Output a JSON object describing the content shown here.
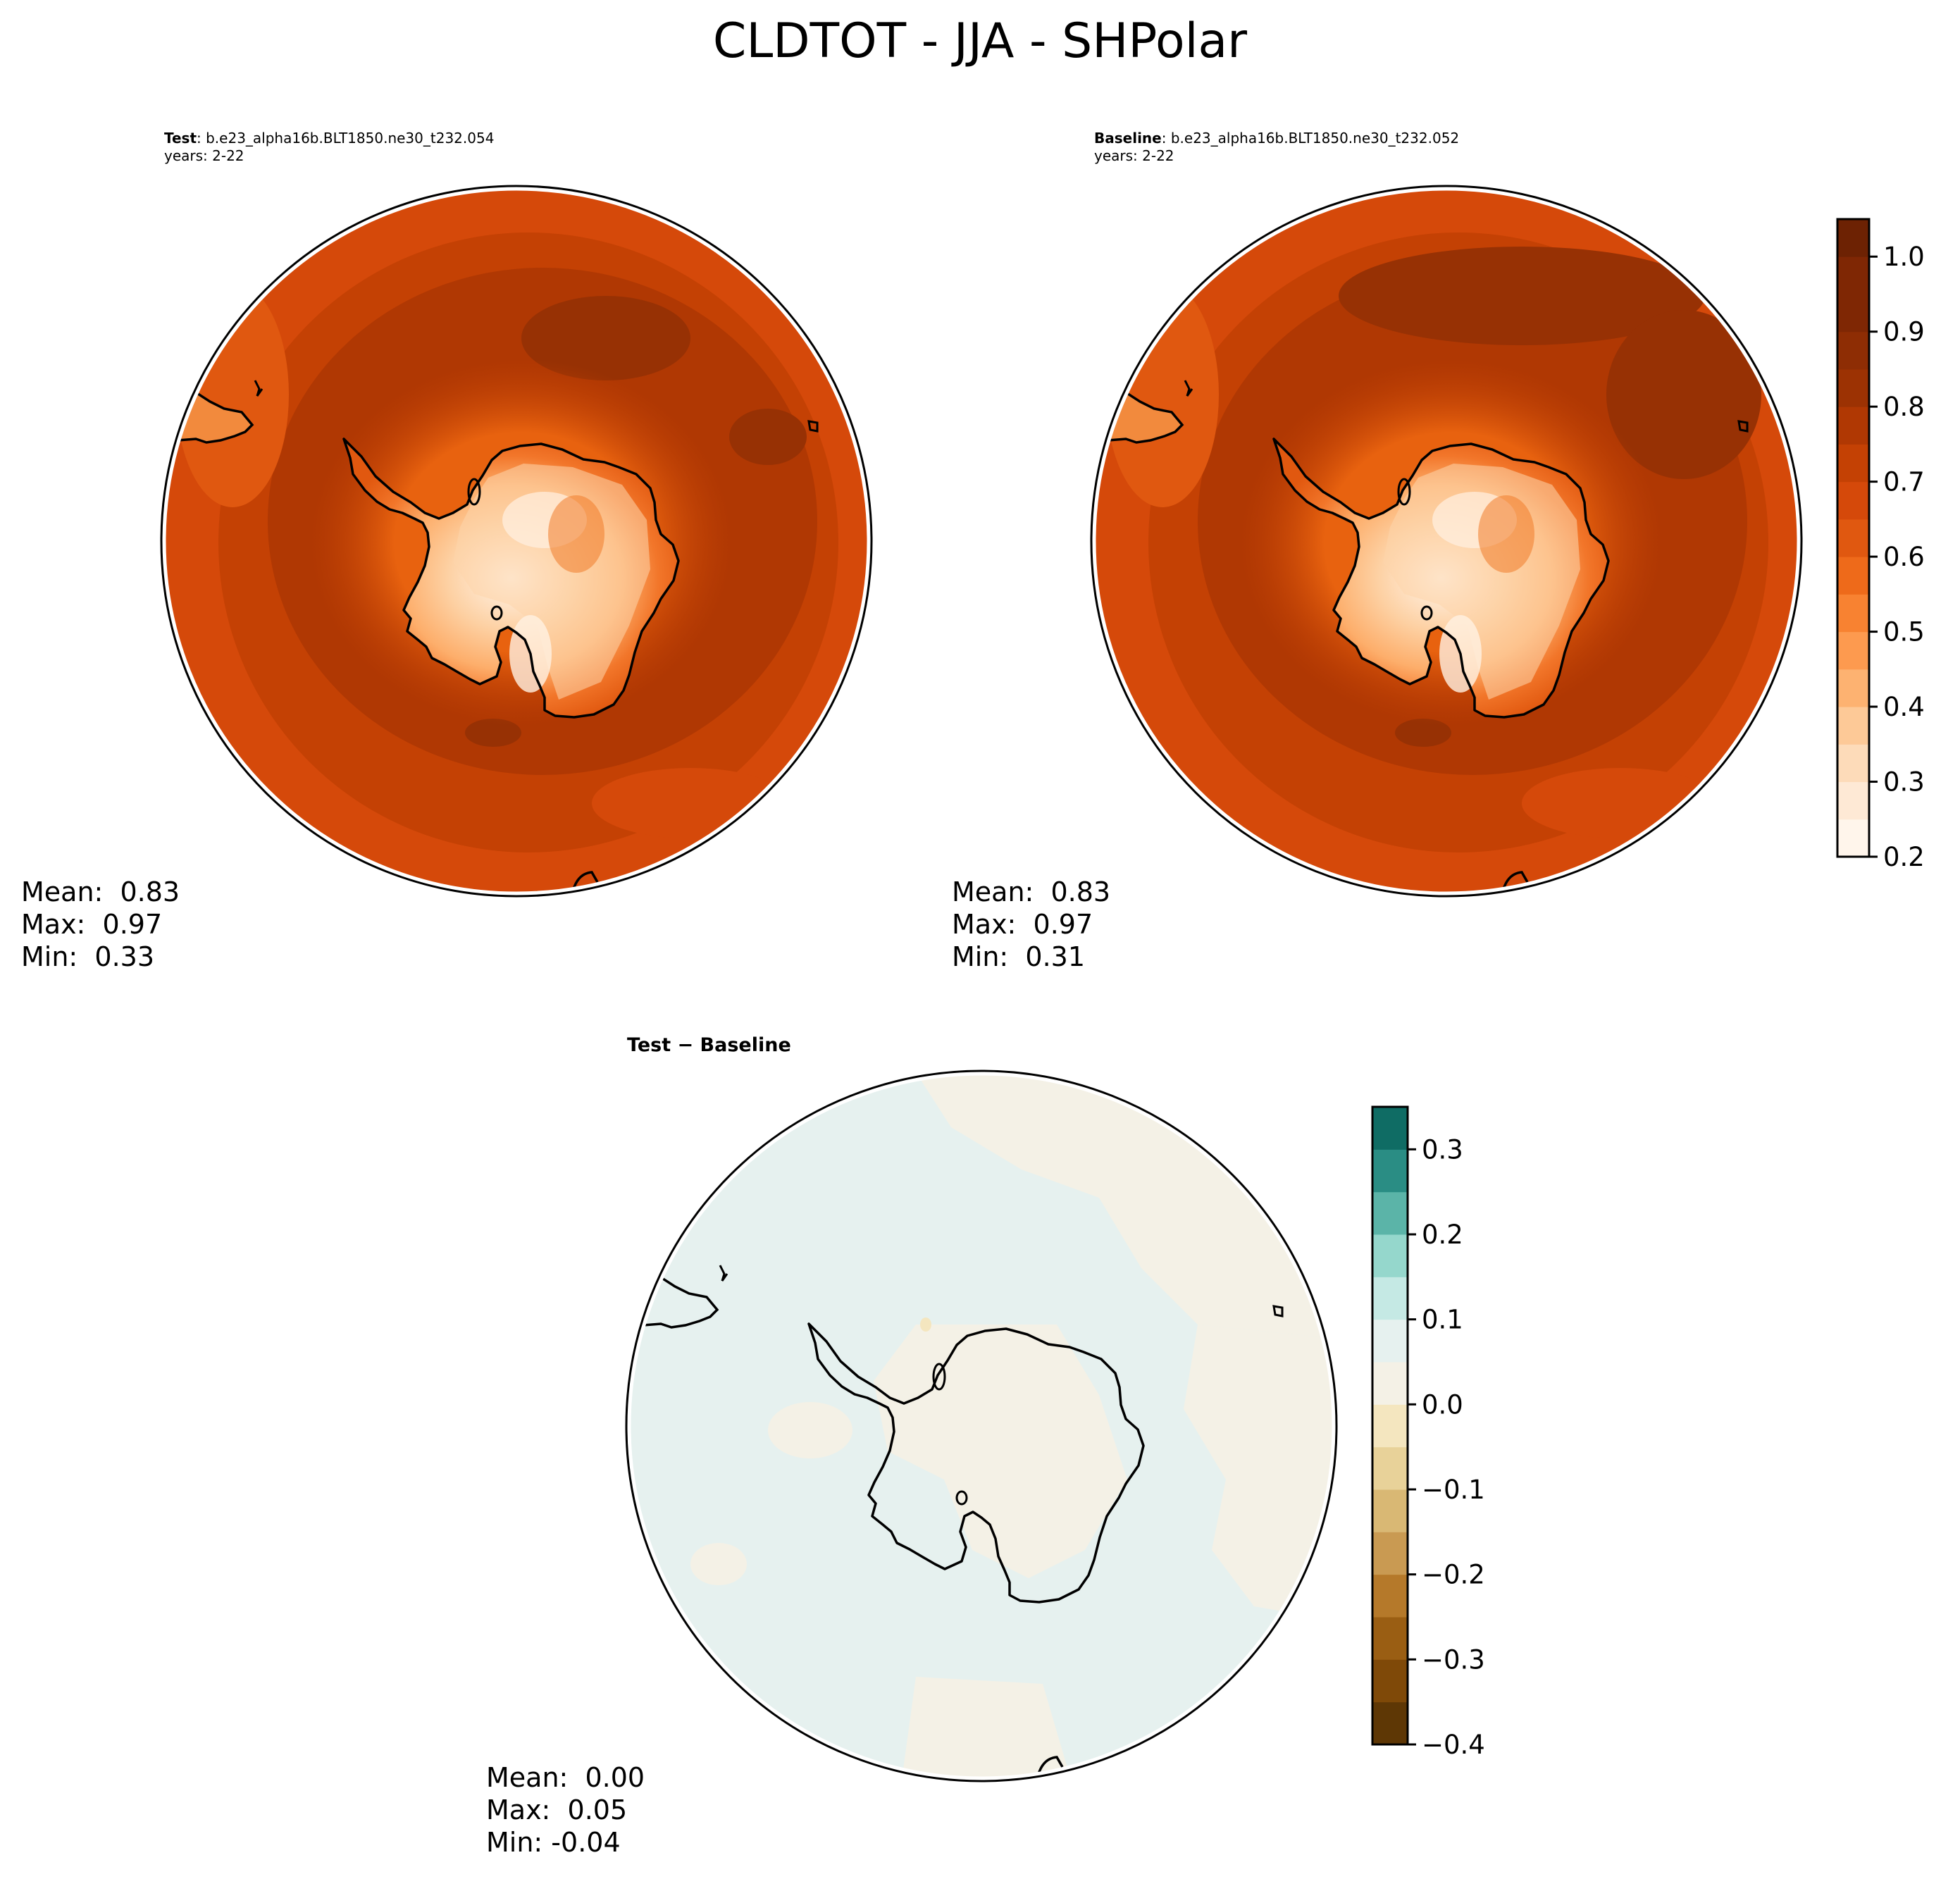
{
  "figure_title": "CLDTOT - JJA - SHPolar",
  "panels": {
    "test": {
      "label": "Test",
      "case": ": b.e23_alpha16b.BLT1850.ne30_t232.054",
      "years": "years: 2-22",
      "stats": {
        "mean": "Mean:  0.83",
        "max": "Max:  0.97",
        "min": "Min:  0.33"
      }
    },
    "baseline": {
      "label": "Baseline",
      "case": ": b.e23_alpha16b.BLT1850.ne30_t232.052",
      "years": "years: 2-22",
      "stats": {
        "mean": "Mean:  0.83",
        "max": "Max:  0.97",
        "min": "Min:  0.31"
      }
    },
    "diff": {
      "label": "Test − Baseline",
      "stats": {
        "mean": "Mean:  0.00",
        "max": "Max:  0.05",
        "min": "Min: -0.04"
      }
    }
  },
  "colorbars": {
    "main": {
      "ticks": [
        "0.2",
        "0.3",
        "0.4",
        "0.5",
        "0.6",
        "0.7",
        "0.8",
        "0.9",
        "1.0"
      ],
      "levels": [
        0.2,
        0.25,
        0.3,
        0.35,
        0.4,
        0.45,
        0.5,
        0.55,
        0.6,
        0.65,
        0.7,
        0.75,
        0.8,
        0.85,
        0.9,
        0.95,
        1.0,
        1.05
      ],
      "colors": [
        "#fff5eb",
        "#fee9d5",
        "#fddbb9",
        "#fdc997",
        "#fdb271",
        "#fd9a4f",
        "#f88231",
        "#ee6a1a",
        "#e05810",
        "#d5490a",
        "#c44104",
        "#b03803",
        "#9c3203",
        "#8e2d04",
        "#7f2704",
        "#7f2704",
        "#6d2203"
      ]
    },
    "diff": {
      "ticks": [
        "−0.4",
        "−0.3",
        "−0.2",
        "−0.1",
        "0.0",
        "0.1",
        "0.2",
        "0.3"
      ],
      "levels": [
        -0.4,
        -0.35,
        -0.3,
        -0.25,
        -0.2,
        -0.15,
        -0.1,
        -0.05,
        0.0,
        0.05,
        0.1,
        0.15,
        0.2,
        0.25,
        0.3,
        0.35
      ],
      "colors": [
        "#5e3705",
        "#7f4908",
        "#9a5e13",
        "#b5792a",
        "#c99a52",
        "#d9b874",
        "#e8d299",
        "#f4e6bf",
        "#f4f1e6",
        "#e6f1ef",
        "#c5e9e4",
        "#95d7cc",
        "#5bb4a8",
        "#2a8d84",
        "#0f6c64",
        "#034e44"
      ]
    },
    "palette": {
      "ocean_main": "#b23a03",
      "ocean_dark": "#973104",
      "ocean_light": "#d5490a",
      "diff_zero_pos": "#e6f1ef",
      "diff_zero_neg": "#f4f1e6",
      "coast": "#000000"
    }
  }
}
